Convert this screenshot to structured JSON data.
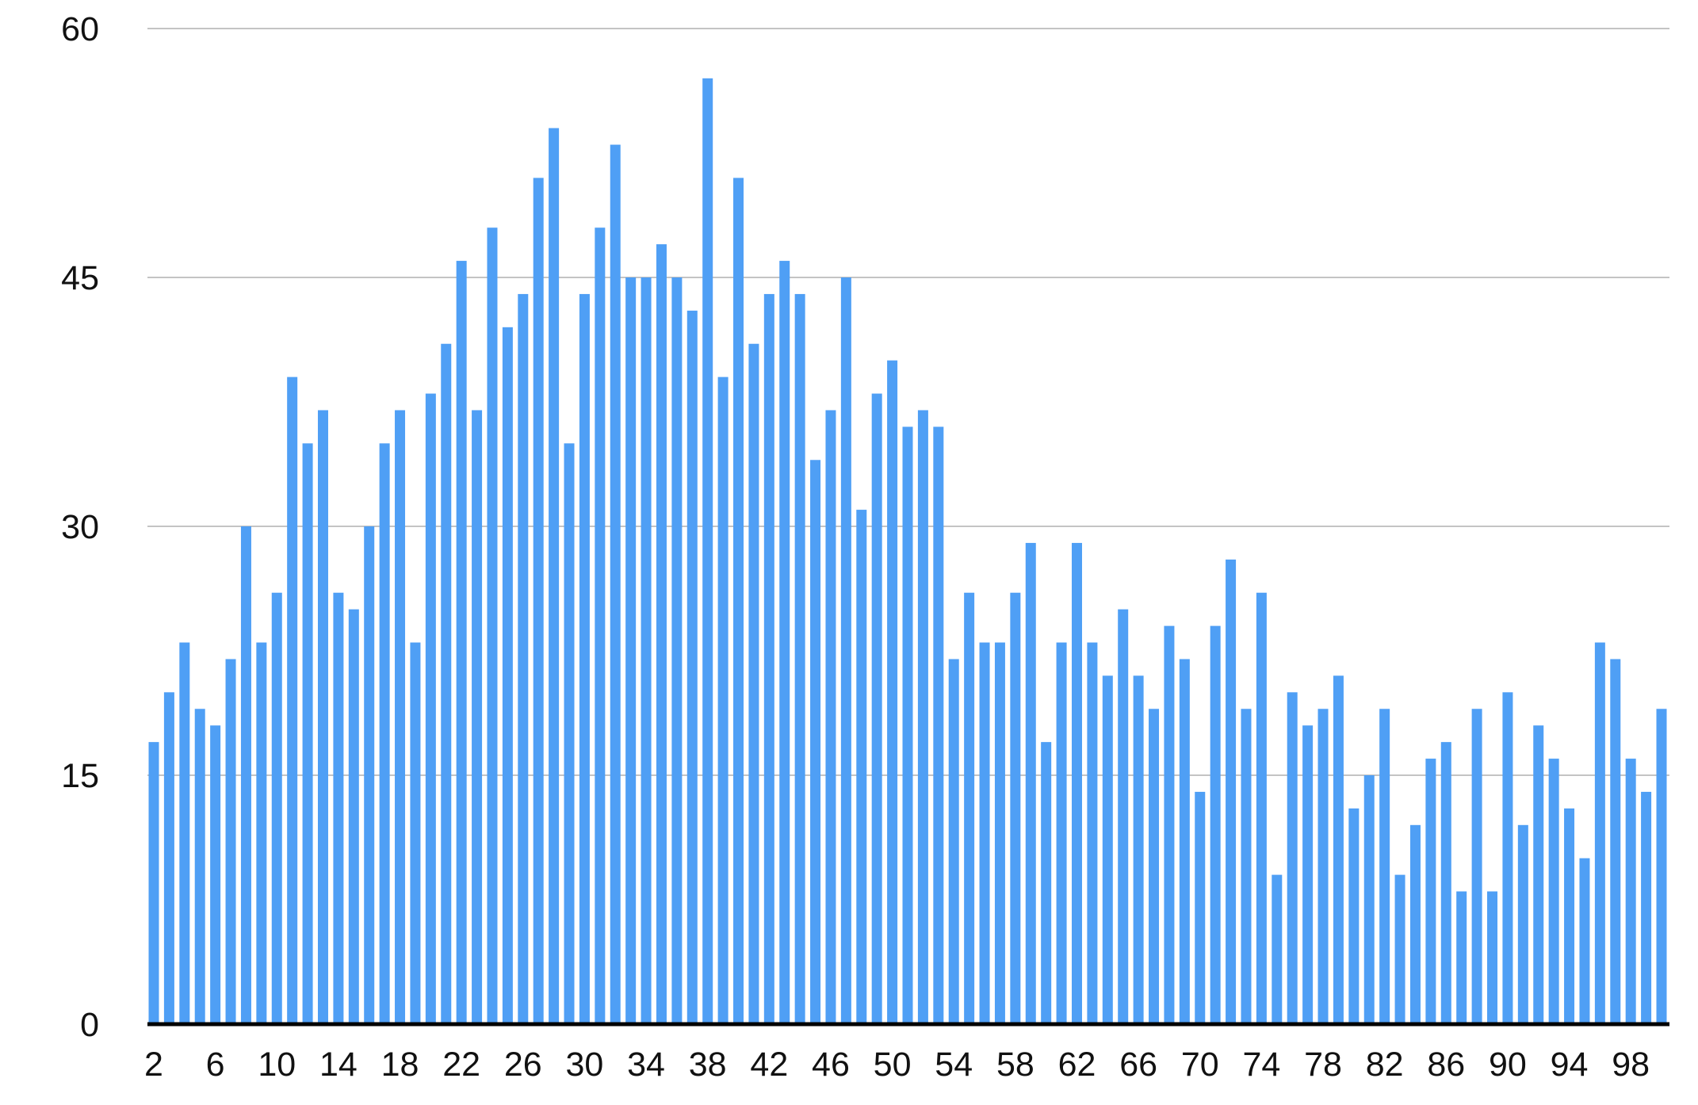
{
  "chart_data": {
    "type": "bar",
    "x": [
      2,
      3,
      4,
      5,
      6,
      7,
      8,
      9,
      10,
      11,
      12,
      13,
      14,
      15,
      16,
      17,
      18,
      19,
      20,
      21,
      22,
      23,
      24,
      25,
      26,
      27,
      28,
      29,
      30,
      31,
      32,
      33,
      34,
      35,
      36,
      37,
      38,
      39,
      40,
      41,
      42,
      43,
      44,
      45,
      46,
      47,
      48,
      49,
      50,
      51,
      52,
      53,
      54,
      55,
      56,
      57,
      58,
      59,
      60,
      61,
      62,
      63,
      64,
      65,
      66,
      67,
      68,
      69,
      70,
      71,
      72,
      73,
      74,
      75,
      76,
      77,
      78,
      79,
      80,
      81,
      82,
      83,
      84,
      85,
      86,
      87,
      88,
      89,
      90,
      91,
      92,
      93,
      94,
      95,
      96,
      97,
      98,
      99,
      100
    ],
    "values": [
      17,
      20,
      23,
      19,
      18,
      22,
      30,
      23,
      26,
      39,
      35,
      37,
      26,
      25,
      30,
      35,
      37,
      23,
      38,
      41,
      46,
      37,
      48,
      42,
      44,
      51,
      54,
      35,
      44,
      48,
      53,
      45,
      45,
      47,
      45,
      43,
      57,
      39,
      51,
      41,
      44,
      46,
      44,
      34,
      37,
      45,
      31,
      38,
      40,
      36,
      37,
      36,
      22,
      26,
      23,
      23,
      26,
      29,
      17,
      23,
      29,
      23,
      21,
      25,
      21,
      19,
      24,
      22,
      14,
      24,
      28,
      19,
      26,
      9,
      20,
      18,
      19,
      21,
      13,
      15,
      19,
      9,
      12,
      16,
      17,
      8,
      19,
      8,
      20,
      12,
      18,
      16,
      13,
      10,
      23,
      22,
      16,
      14,
      19
    ],
    "x_tick_labels": [
      "2",
      "6",
      "10",
      "14",
      "18",
      "22",
      "26",
      "30",
      "34",
      "38",
      "42",
      "46",
      "50",
      "54",
      "58",
      "62",
      "66",
      "70",
      "74",
      "78",
      "82",
      "86",
      "90",
      "94",
      "98"
    ],
    "y_tick_labels": [
      "0",
      "15",
      "30",
      "45",
      "60"
    ],
    "ylim": [
      0,
      60
    ],
    "title": "",
    "xlabel": "",
    "ylabel": "",
    "grid": true,
    "legend": "none"
  },
  "colors": {
    "bar": "#4f9ff5",
    "grid": "#c4c4c4",
    "axis": "#000000",
    "text": "#111111"
  }
}
